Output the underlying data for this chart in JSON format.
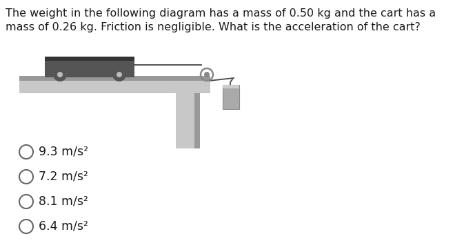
{
  "title_line1": "The weight in the following diagram has a mass of 0.50 kg and the cart has a",
  "title_line2": "mass of 0.26 kg. Friction is negligible. What is the acceleration of the cart?",
  "options": [
    "9.3 m/s²",
    "7.2 m/s²",
    "8.1 m/s²",
    "6.4 m/s²"
  ],
  "bg_color": "#ffffff",
  "table_color": "#c8c8c8",
  "table_dark_top": "#999999",
  "table_leg_color": "#c0c0c0",
  "table_leg_dark": "#aaaaaa",
  "cart_body_color": "#555555",
  "cart_top_color": "#333333",
  "wheel_rim_color": "#555555",
  "wheel_hub_color": "#bbbbbb",
  "weight_body_color": "#aaaaaa",
  "weight_dark": "#888888",
  "string_color": "#444444",
  "pulley_color": "#888888",
  "text_color": "#1a1a1a",
  "title_fontsize": 11.5,
  "option_fontsize": 12.5
}
